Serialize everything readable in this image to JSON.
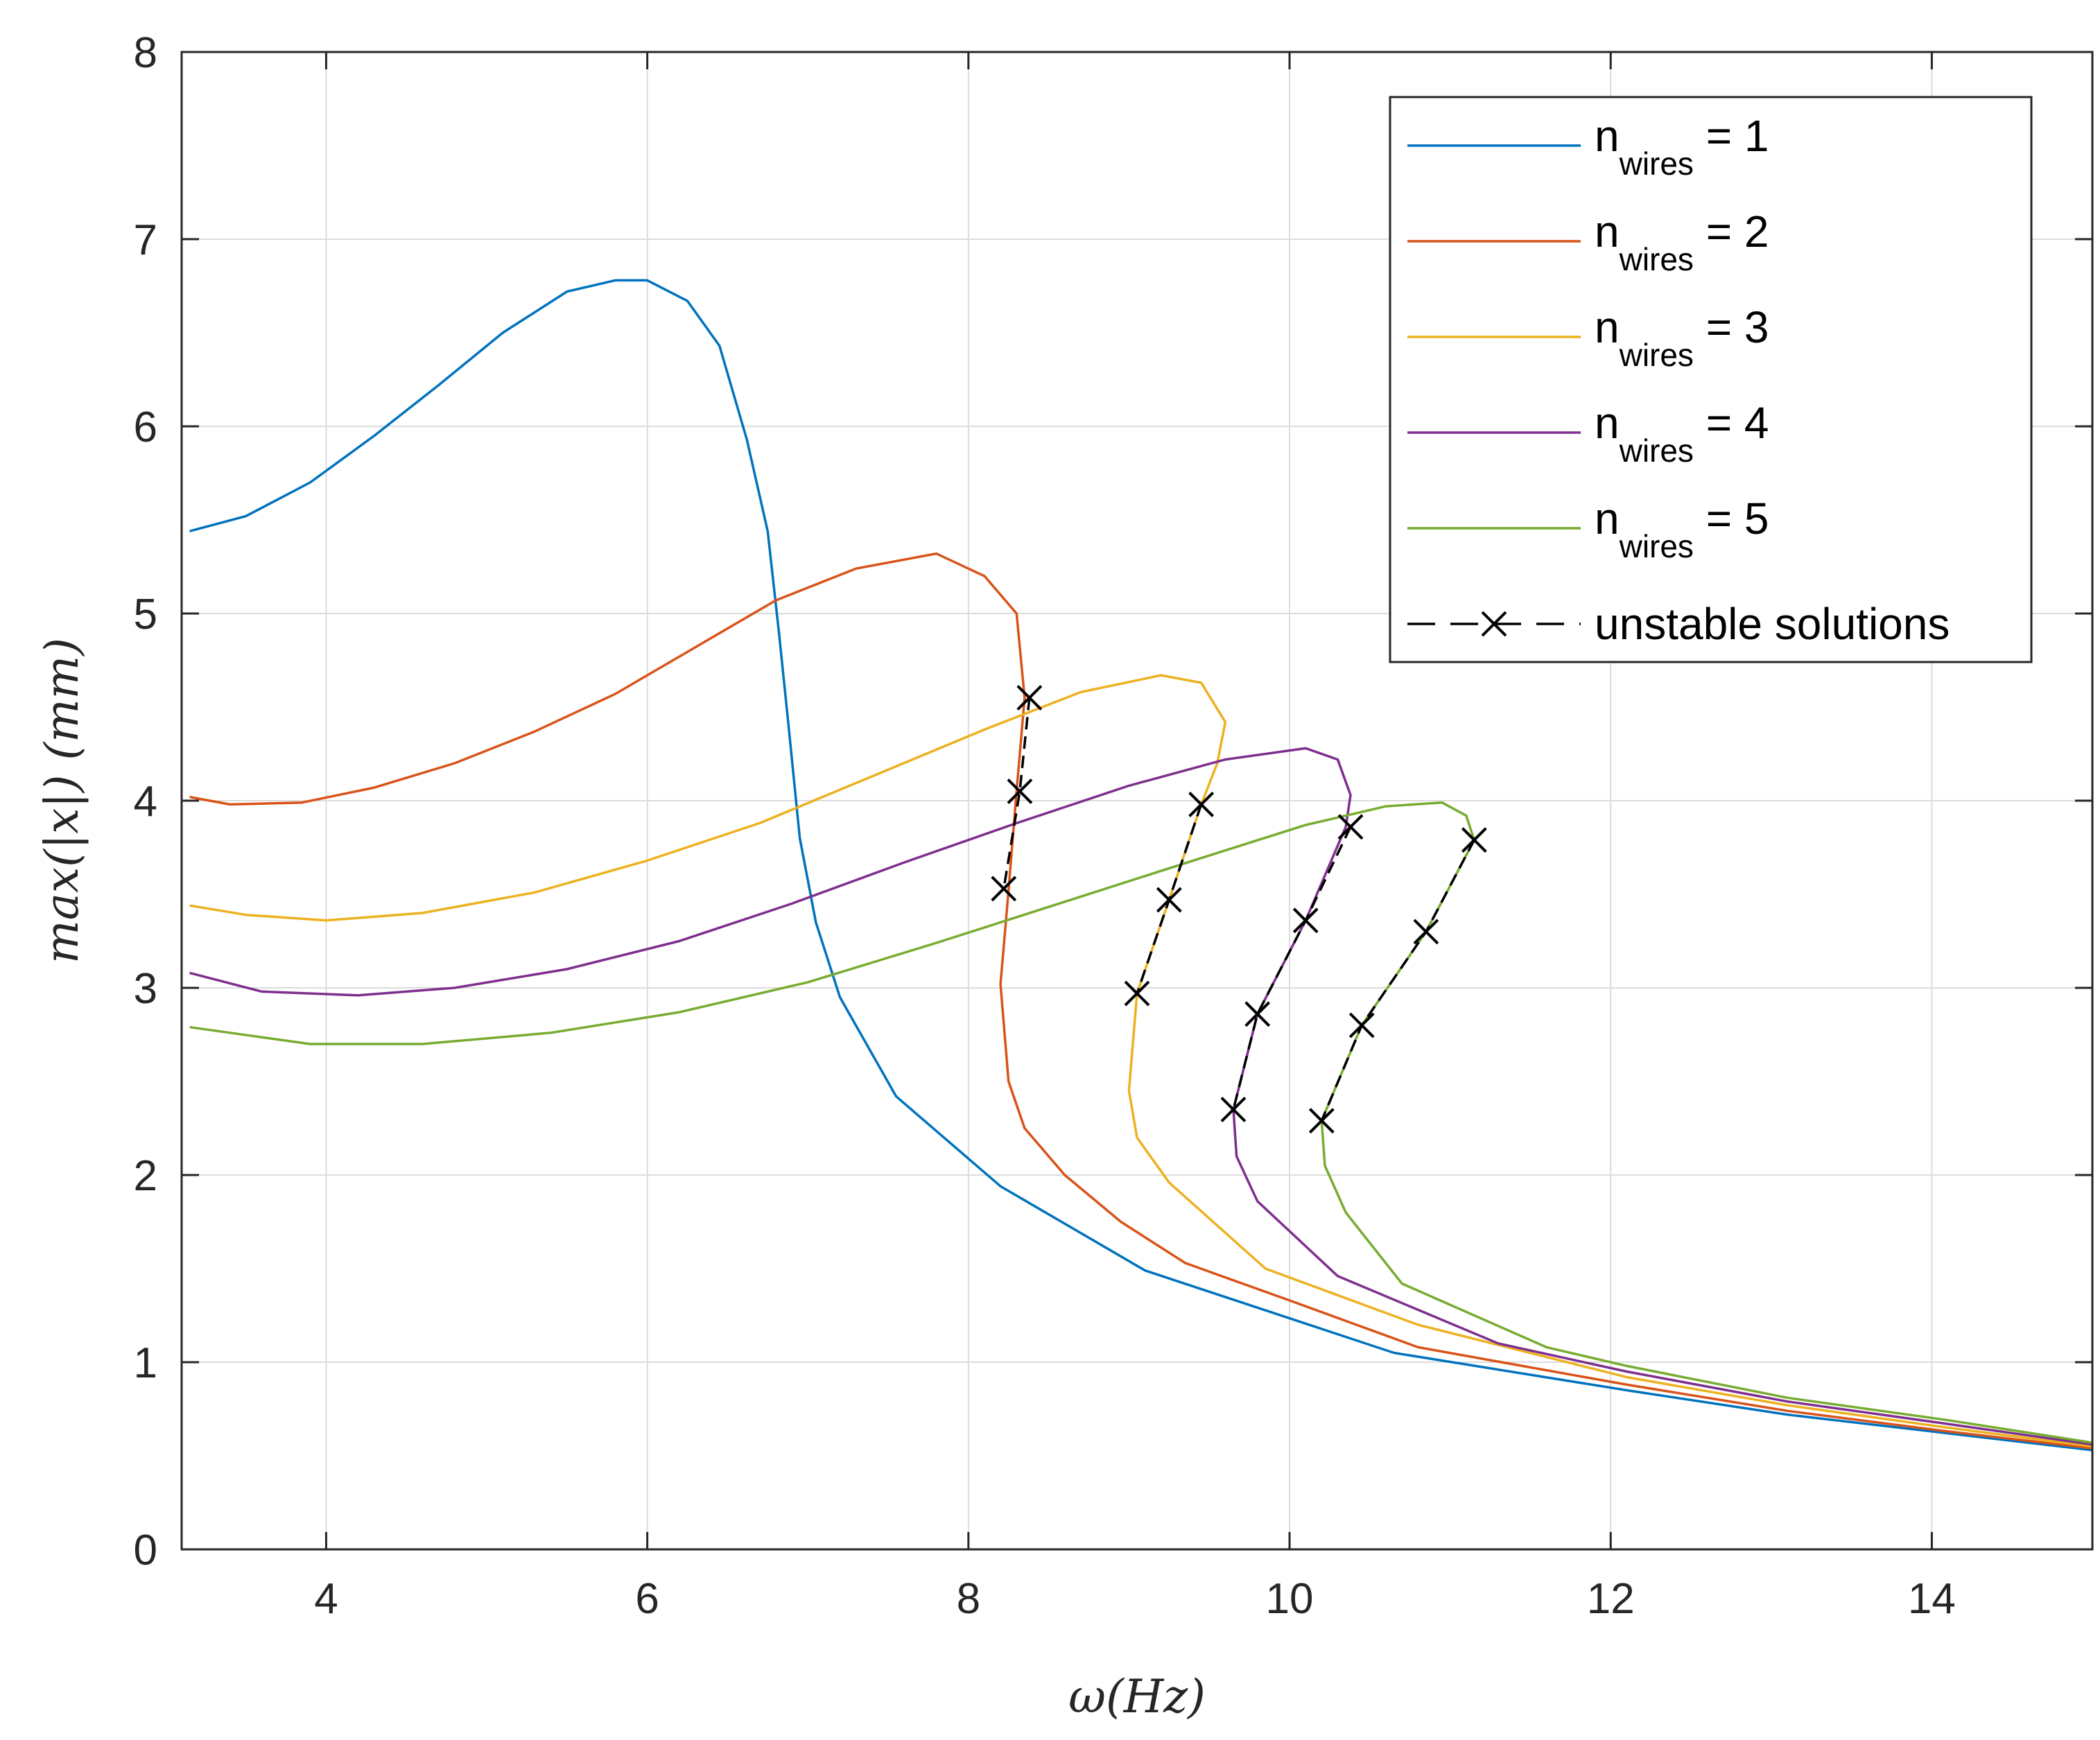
{
  "chart_data": {
    "type": "line",
    "xlabel": "ω(Hz)",
    "ylabel": "max(|x|) (mm)",
    "xlim": [
      3.1,
      15
    ],
    "ylim": [
      0,
      8
    ],
    "xticks": [
      4,
      6,
      8,
      10,
      12,
      14
    ],
    "yticks": [
      0,
      1,
      2,
      3,
      4,
      5,
      6,
      7,
      8
    ],
    "grid": true,
    "legend_position": "top-right",
    "series": [
      {
        "name_main": "n",
        "name_sub": "wires",
        "name_tail": " = 1",
        "color": "#0072BD",
        "x": [
          3.15,
          3.5,
          3.9,
          4.3,
          4.7,
          5.1,
          5.5,
          5.8,
          6.0,
          6.25,
          6.45,
          6.62,
          6.75,
          6.82,
          6.88,
          6.95,
          7.05,
          7.2,
          7.55,
          8.2,
          9.1,
          10.65,
          12.1,
          13.1,
          14.1,
          15.0
        ],
        "y": [
          5.44,
          5.52,
          5.7,
          5.95,
          6.22,
          6.5,
          6.72,
          6.78,
          6.78,
          6.67,
          6.43,
          5.93,
          5.44,
          4.9,
          4.4,
          3.8,
          3.35,
          2.95,
          2.42,
          1.94,
          1.49,
          1.05,
          0.85,
          0.72,
          0.62,
          0.53
        ]
      },
      {
        "name_main": "n",
        "name_sub": "wires",
        "name_tail": " = 2",
        "color": "#D95319",
        "x": [
          3.15,
          3.4,
          3.85,
          4.3,
          4.8,
          5.3,
          5.8,
          6.3,
          6.8,
          7.3,
          7.8,
          8.1,
          8.3,
          8.35,
          8.3,
          8.25,
          8.2,
          8.25,
          8.35,
          8.6,
          8.95,
          9.35,
          10.0,
          10.8,
          12.1,
          13.1,
          14.1,
          15.0
        ],
        "y": [
          4.02,
          3.98,
          3.99,
          4.07,
          4.2,
          4.37,
          4.57,
          4.82,
          5.07,
          5.24,
          5.32,
          5.2,
          5.0,
          4.55,
          4.05,
          3.52,
          3.02,
          2.5,
          2.25,
          2.0,
          1.75,
          1.53,
          1.33,
          1.08,
          0.88,
          0.74,
          0.63,
          0.54
        ]
      },
      {
        "name_main": "n",
        "name_sub": "wires",
        "name_tail": " = 3",
        "color": "#EDB120",
        "x": [
          3.15,
          3.5,
          4.0,
          4.6,
          5.3,
          6.0,
          6.7,
          7.4,
          8.1,
          8.7,
          9.2,
          9.45,
          9.6,
          9.55,
          9.45,
          9.25,
          9.05,
          9.0,
          9.05,
          9.25,
          9.85,
          10.8,
          12.1,
          13.1,
          14.1,
          15.0
        ],
        "y": [
          3.44,
          3.39,
          3.36,
          3.4,
          3.51,
          3.68,
          3.88,
          4.13,
          4.38,
          4.58,
          4.67,
          4.63,
          4.42,
          4.2,
          3.98,
          3.47,
          2.97,
          2.45,
          2.2,
          1.96,
          1.5,
          1.2,
          0.92,
          0.77,
          0.65,
          0.55
        ]
      },
      {
        "name_main": "n",
        "name_sub": "wires",
        "name_tail": " = 4",
        "color": "#7E2F8E",
        "x": [
          3.15,
          3.6,
          4.2,
          4.8,
          5.5,
          6.2,
          6.9,
          7.6,
          8.3,
          9.0,
          9.6,
          10.1,
          10.3,
          10.38,
          10.35,
          10.1,
          9.8,
          9.65,
          9.67,
          9.8,
          10.3,
          11.3,
          12.1,
          13.1,
          14.1,
          15.0
        ],
        "y": [
          3.08,
          2.98,
          2.96,
          3.0,
          3.1,
          3.25,
          3.45,
          3.67,
          3.88,
          4.08,
          4.22,
          4.28,
          4.22,
          4.03,
          3.86,
          3.36,
          2.86,
          2.35,
          2.1,
          1.86,
          1.46,
          1.1,
          0.95,
          0.79,
          0.67,
          0.56
        ]
      },
      {
        "name_main": "n",
        "name_sub": "wires",
        "name_tail": " = 5",
        "color": "#77AC30",
        "x": [
          3.15,
          3.4,
          3.9,
          4.6,
          5.4,
          6.2,
          7.0,
          7.8,
          8.6,
          9.4,
          10.1,
          10.6,
          10.95,
          11.1,
          11.15,
          10.85,
          10.45,
          10.2,
          10.22,
          10.35,
          10.7,
          11.6,
          12.1,
          13.1,
          14.1,
          15.0
        ],
        "y": [
          2.79,
          2.76,
          2.7,
          2.7,
          2.76,
          2.87,
          3.03,
          3.24,
          3.46,
          3.68,
          3.87,
          3.97,
          3.99,
          3.92,
          3.79,
          3.3,
          2.8,
          2.29,
          2.05,
          1.8,
          1.42,
          1.08,
          0.98,
          0.81,
          0.69,
          0.57
        ]
      }
    ],
    "unstable": {
      "name": "unstable solutions",
      "color": "#000000",
      "segments": [
        {
          "x": [
            8.38,
            8.32,
            8.22
          ],
          "y": [
            4.55,
            4.05,
            3.53
          ]
        },
        {
          "x": [
            9.45,
            9.25,
            9.05
          ],
          "y": [
            3.98,
            3.47,
            2.97
          ]
        },
        {
          "x": [
            10.38,
            10.1,
            9.8,
            9.65
          ],
          "y": [
            3.86,
            3.36,
            2.86,
            2.35
          ]
        },
        {
          "x": [
            11.15,
            10.85,
            10.45,
            10.2
          ],
          "y": [
            3.79,
            3.3,
            2.8,
            2.29
          ]
        }
      ]
    }
  }
}
